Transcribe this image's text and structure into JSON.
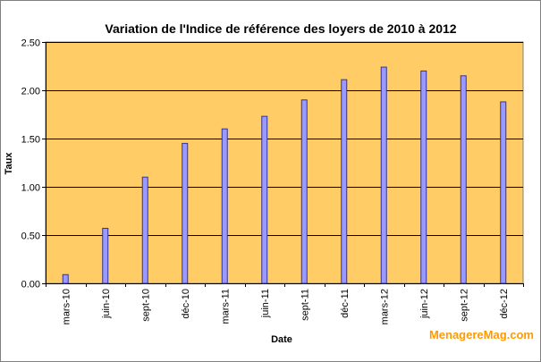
{
  "chart_data": {
    "type": "bar",
    "title": "Variation de l'Indice de référence des loyers de 2010 à 2012",
    "xlabel": "Date",
    "ylabel": "Taux",
    "categories": [
      "mars-10",
      "juin-10",
      "sept-10",
      "déc-10",
      "mars-11",
      "juin-11",
      "sept-11",
      "déc-11",
      "mars-12",
      "juin-12",
      "sept-12",
      "déc-12"
    ],
    "series": [
      {
        "values": [
          0.09,
          0.57,
          1.1,
          1.45,
          1.6,
          1.73,
          1.9,
          2.11,
          2.24,
          2.2,
          2.15,
          1.88
        ]
      }
    ],
    "ylim": [
      0,
      2.5
    ],
    "yticks": [
      "0.00",
      "0.50",
      "1.00",
      "1.50",
      "2.00",
      "2.50"
    ],
    "grid": true,
    "colors": {
      "plot_background": "#ffcc66",
      "bar_fill": "#9999ff",
      "bar_stroke": "#333399",
      "gridline": "#000000",
      "watermark": "#ff9a00"
    }
  },
  "watermark": "MenagereMag.com"
}
